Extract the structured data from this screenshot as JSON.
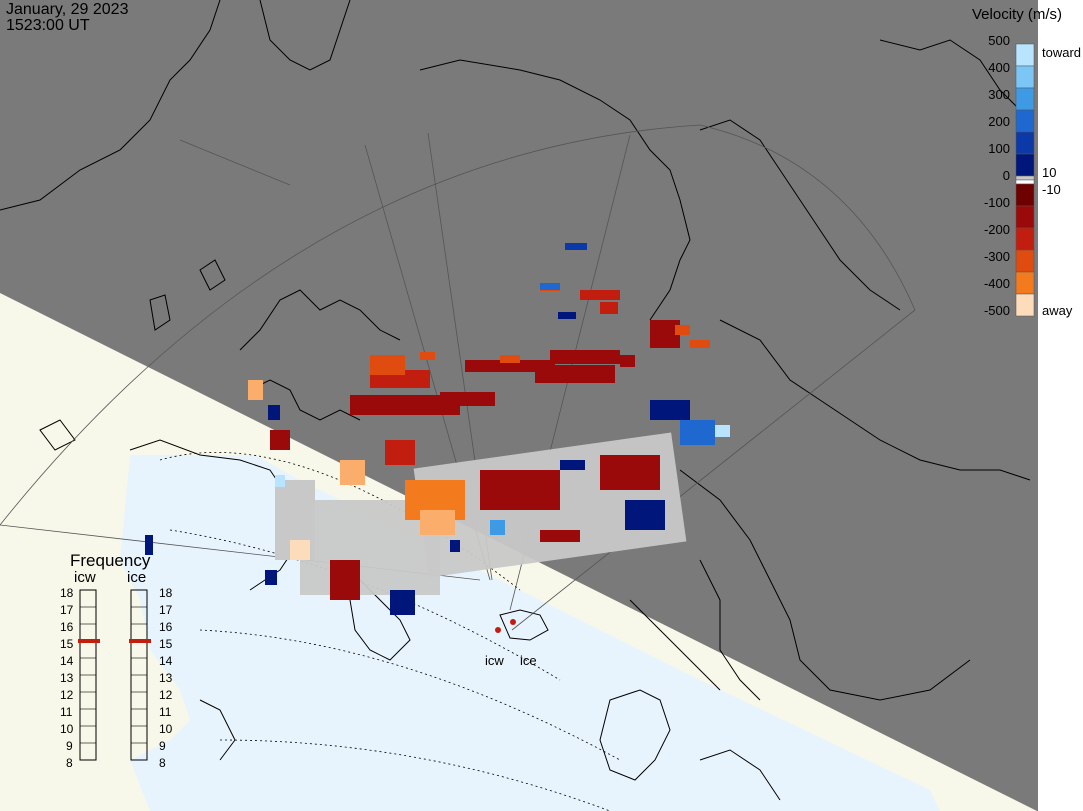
{
  "header": {
    "date": "January, 29 2023",
    "time": "1523:00 UT"
  },
  "legend": {
    "title": "Velocity (m/s)",
    "toward_label": "toward",
    "away_label": "away",
    "ticks": [
      "500",
      "400",
      "300",
      "200",
      "100",
      "0",
      "-100",
      "-200",
      "-300",
      "-400",
      "-500"
    ],
    "threshold_pos": "10",
    "threshold_neg": "-10",
    "colors_toward": [
      "#b8e4ff",
      "#7cc6f6",
      "#3f9ae6",
      "#1f68d0",
      "#0b3aa8",
      "#00167a"
    ],
    "colors_away": [
      "#6e0000",
      "#9b0a0a",
      "#c21e10",
      "#e04b10",
      "#f47a1e",
      "#fbae6b",
      "#fddcbb"
    ],
    "gs_color": "#c8c8c8"
  },
  "frequency": {
    "title": "Frequency",
    "icw_label": "icw",
    "ice_label": "ice",
    "scale": [
      "18",
      "17",
      "16",
      "15",
      "14",
      "13",
      "12",
      "11",
      "10",
      "9",
      "8"
    ],
    "icw_mhz": 15,
    "ice_mhz": 15
  },
  "stations": {
    "icw": "icw",
    "ice": "ice"
  },
  "map_colors": {
    "night": "#7a7a7a",
    "day_land": "#f8f8ea",
    "day_ocean": "#e8f4fd",
    "coast": "#000000"
  }
}
